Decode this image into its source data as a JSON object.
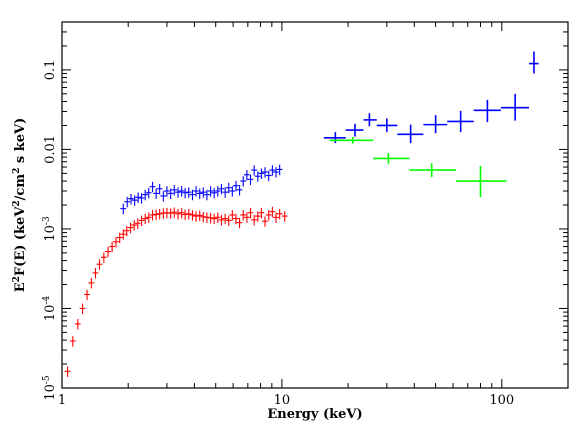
{
  "chart_data": {
    "type": "scatter",
    "title": "",
    "xlabel": "Energy (keV)",
    "ylabel": {
      "main": "E",
      "sup1": "2",
      "rest1": "F(E) (keV",
      "sup2": "2",
      "rest2": "/cm",
      "sup3": "2",
      "rest3": " s keV)"
    },
    "x_scale": "log",
    "y_scale": "log",
    "xlim": [
      1,
      200
    ],
    "ylim": [
      1e-05,
      0.4
    ],
    "x_ticks": [
      {
        "value": 1,
        "label": "1"
      },
      {
        "value": 10,
        "label": "10"
      },
      {
        "value": 100,
        "label": "100"
      }
    ],
    "y_ticks": [
      {
        "value": 1e-05,
        "mant": "10",
        "exp": "-5"
      },
      {
        "value": 0.0001,
        "mant": "10",
        "exp": "-4"
      },
      {
        "value": 0.001,
        "mant": "10",
        "exp": "-3"
      },
      {
        "value": 0.01,
        "label": "0.01"
      },
      {
        "value": 0.1,
        "label": "0.1"
      }
    ],
    "grid": false,
    "series": [
      {
        "color": "#ff0000",
        "points": [
          [
            1.06,
            1.62e-05
          ],
          [
            1.12,
            3.9e-05
          ],
          [
            1.18,
            6.4e-05
          ],
          [
            1.24,
            0.0001
          ],
          [
            1.3,
            0.00015
          ],
          [
            1.36,
            0.00021
          ],
          [
            1.42,
            0.00028
          ],
          [
            1.48,
            0.00036
          ],
          [
            1.55,
            0.00044
          ],
          [
            1.62,
            0.00052
          ],
          [
            1.69,
            0.0006
          ],
          [
            1.76,
            0.00069
          ],
          [
            1.83,
            0.00078
          ],
          [
            1.9,
            0.00086
          ],
          [
            1.97,
            0.00095
          ],
          [
            2.05,
            0.00104
          ],
          [
            2.13,
            0.00112
          ],
          [
            2.21,
            0.00118
          ],
          [
            2.3,
            0.00128
          ],
          [
            2.39,
            0.00135
          ],
          [
            2.48,
            0.0014
          ],
          [
            2.58,
            0.0015
          ],
          [
            2.68,
            0.00152
          ],
          [
            2.78,
            0.00155
          ],
          [
            2.89,
            0.00158
          ],
          [
            3.0,
            0.0016
          ],
          [
            3.12,
            0.00158
          ],
          [
            3.24,
            0.00162
          ],
          [
            3.37,
            0.00155
          ],
          [
            3.5,
            0.0016
          ],
          [
            3.63,
            0.00152
          ],
          [
            3.77,
            0.00155
          ],
          [
            3.92,
            0.0015
          ],
          [
            4.07,
            0.00145
          ],
          [
            4.23,
            0.00148
          ],
          [
            4.39,
            0.00142
          ],
          [
            4.56,
            0.0014
          ],
          [
            4.74,
            0.00138
          ],
          [
            4.92,
            0.00135
          ],
          [
            5.11,
            0.0014
          ],
          [
            5.31,
            0.0013
          ],
          [
            5.52,
            0.00135
          ],
          [
            5.73,
            0.00128
          ],
          [
            5.95,
            0.0015
          ],
          [
            6.18,
            0.00135
          ],
          [
            6.42,
            0.0012
          ],
          [
            6.67,
            0.0015
          ],
          [
            6.93,
            0.0014
          ],
          [
            7.2,
            0.0016
          ],
          [
            7.48,
            0.0013
          ],
          [
            7.77,
            0.00145
          ],
          [
            8.07,
            0.0016
          ],
          [
            8.38,
            0.00125
          ],
          [
            8.71,
            0.0015
          ],
          [
            9.05,
            0.00165
          ],
          [
            9.4,
            0.0014
          ],
          [
            9.77,
            0.00155
          ],
          [
            10.3,
            0.00145
          ]
        ],
        "x_err_frac": 0.03,
        "y_err_frac": 0.15
      },
      {
        "color": "#0000ff",
        "points": [
          [
            1.9,
            0.0018
          ],
          [
            1.98,
            0.0022
          ],
          [
            2.06,
            0.0024
          ],
          [
            2.14,
            0.0023
          ],
          [
            2.22,
            0.0025
          ],
          [
            2.3,
            0.00245
          ],
          [
            2.39,
            0.0027
          ],
          [
            2.48,
            0.00285
          ],
          [
            2.58,
            0.0034
          ],
          [
            2.68,
            0.0028
          ],
          [
            2.78,
            0.0032
          ],
          [
            2.89,
            0.0026
          ],
          [
            3.0,
            0.003
          ],
          [
            3.12,
            0.0028
          ],
          [
            3.24,
            0.0031
          ],
          [
            3.37,
            0.0029
          ],
          [
            3.5,
            0.003
          ],
          [
            3.63,
            0.00285
          ],
          [
            3.77,
            0.0029
          ],
          [
            3.92,
            0.0027
          ],
          [
            4.07,
            0.003
          ],
          [
            4.23,
            0.0028
          ],
          [
            4.39,
            0.0029
          ],
          [
            4.56,
            0.0027
          ],
          [
            4.74,
            0.003
          ],
          [
            4.92,
            0.00285
          ],
          [
            5.11,
            0.003
          ],
          [
            5.31,
            0.0032
          ],
          [
            5.52,
            0.0029
          ],
          [
            5.73,
            0.0033
          ],
          [
            5.95,
            0.003
          ],
          [
            6.18,
            0.0035
          ],
          [
            6.42,
            0.0031
          ],
          [
            6.67,
            0.004
          ],
          [
            6.93,
            0.0048
          ],
          [
            7.2,
            0.0042
          ],
          [
            7.48,
            0.0055
          ],
          [
            7.77,
            0.0046
          ],
          [
            8.07,
            0.005
          ],
          [
            8.38,
            0.0052
          ],
          [
            8.71,
            0.0047
          ],
          [
            9.05,
            0.0055
          ],
          [
            9.4,
            0.0052
          ],
          [
            9.77,
            0.0056
          ]
        ],
        "x_err_frac": 0.03,
        "y_err_frac": 0.15
      },
      {
        "color": "#0000ff",
        "large": true,
        "points": [
          [
            17.5,
            0.014,
            15.5,
            19.5,
            0.012,
            0.0165
          ],
          [
            21.5,
            0.0175,
            19.5,
            23.5,
            0.0145,
            0.021
          ],
          [
            25.0,
            0.0235,
            23.5,
            27.0,
            0.0195,
            0.0285
          ],
          [
            30.0,
            0.02,
            27.0,
            33.5,
            0.0165,
            0.0245
          ],
          [
            38.5,
            0.0155,
            33.5,
            44.0,
            0.012,
            0.0205
          ],
          [
            50.0,
            0.0205,
            44.0,
            56.5,
            0.016,
            0.027
          ],
          [
            65.0,
            0.0225,
            56.5,
            74.5,
            0.0165,
            0.0305
          ],
          [
            86.0,
            0.031,
            74.5,
            99.0,
            0.022,
            0.042
          ],
          [
            115.0,
            0.0335,
            99.0,
            133.0,
            0.023,
            0.05
          ],
          [
            140.0,
            0.12,
            133.0,
            147.0,
            0.09,
            0.17
          ]
        ]
      },
      {
        "color": "#00ff00",
        "large": true,
        "points": [
          [
            21.0,
            0.013,
            16.5,
            26.0,
            0.0118,
            0.0143
          ],
          [
            30.5,
            0.0077,
            26.0,
            38.0,
            0.0066,
            0.009
          ],
          [
            48.0,
            0.0055,
            38.0,
            62.0,
            0.0045,
            0.0067
          ],
          [
            80.0,
            0.004,
            62.0,
            105.0,
            0.0025,
            0.0062
          ]
        ]
      }
    ]
  }
}
